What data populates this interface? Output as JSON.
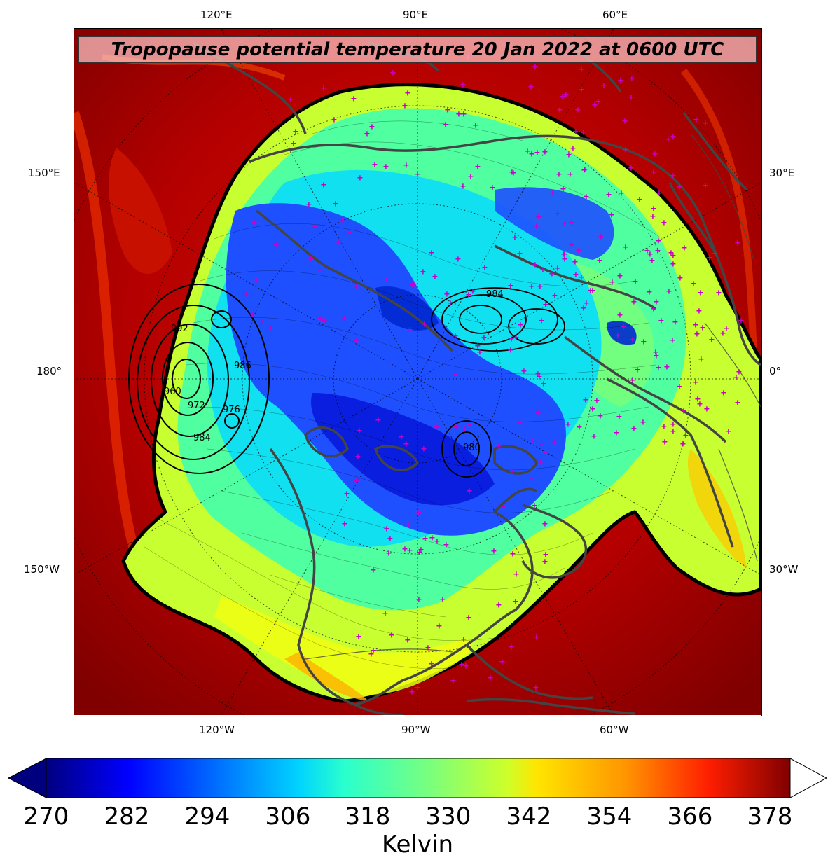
{
  "title": "Tropopause potential temperature 20 Jan 2022 at 0600 UTC",
  "lon_labels": {
    "top": [
      "120°E",
      "90°E",
      "60°E"
    ],
    "bottom": [
      "120°W",
      "90°W",
      "60°W"
    ],
    "left": [
      "150°E",
      "180°",
      "150°W"
    ],
    "right": [
      "30°E",
      "0°",
      "30°W"
    ]
  },
  "colorbar": {
    "ticks": [
      "270",
      "282",
      "294",
      "306",
      "318",
      "330",
      "342",
      "354",
      "366",
      "378"
    ],
    "min": 270,
    "max": 381,
    "label": "Kelvin",
    "colormap": "jet",
    "extend_min_color": "#00007f",
    "extend_max_color": "#ffffff"
  },
  "contour_labels": [
    "992",
    "960",
    "972",
    "976",
    "984",
    "986",
    "984",
    "980"
  ],
  "colors": {
    "coastline": "#444444",
    "station_marker": "#c800c8",
    "background_warm": "#b00000"
  },
  "map": {
    "projection": "north-polar-stereographic",
    "field": "tropopause potential temperature"
  }
}
